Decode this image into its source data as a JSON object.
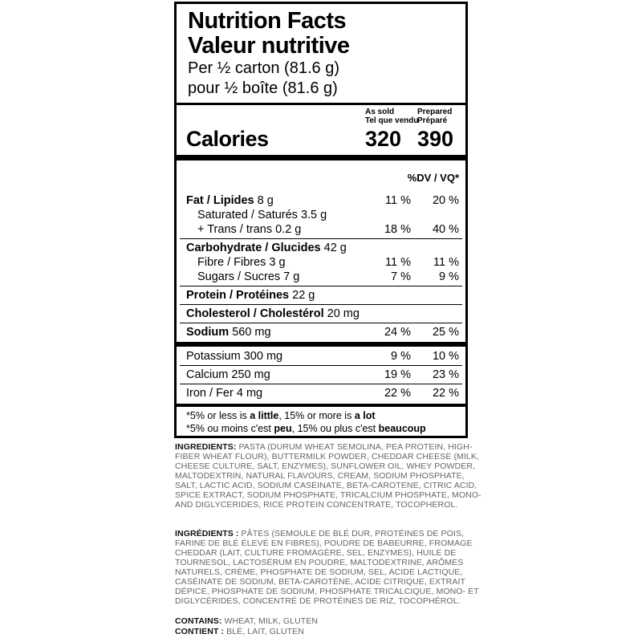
{
  "label": {
    "title_en": "Nutrition Facts",
    "title_fr": "Valeur nutritive",
    "serving_en": "Per ½ carton (81.6 g)",
    "serving_fr": "pour ½ boîte (81.6 g)",
    "col1_header": {
      "en": "As sold",
      "fr": "Tel que vendu"
    },
    "col2_header": {
      "en": "Prepared",
      "fr": "Préparé"
    },
    "calories": {
      "label": "Calories",
      "as_sold": "320",
      "prepared": "390"
    },
    "dv_header": "%DV / VQ*",
    "rows": [
      {
        "b": "Fat / Lipides",
        "r": " 8 g",
        "c1": "11 %",
        "c2": "20 %"
      },
      {
        "b": "",
        "r": "Saturated / Saturés 3.5 g",
        "c1": "",
        "c2": ""
      },
      {
        "b": "",
        "r": "+ Trans / trans 0.2 g",
        "c1": "18 %",
        "c2": "40 %"
      },
      {
        "b": "Carbohydrate / Glucides",
        "r": " 42 g",
        "c1": "",
        "c2": ""
      },
      {
        "b": "",
        "r": "Fibre / Fibres 3 g",
        "c1": "11 %",
        "c2": "11 %"
      },
      {
        "b": "",
        "r": "Sugars / Sucres 7 g",
        "c1": "7 %",
        "c2": "9 %"
      },
      {
        "b": "Protein / Protéines",
        "r": " 22 g",
        "c1": "",
        "c2": ""
      },
      {
        "b": "Cholesterol / Cholestérol",
        "r": " 20 mg",
        "c1": "",
        "c2": ""
      },
      {
        "b": "Sodium",
        "r": " 560 mg",
        "c1": "24 %",
        "c2": "25 %"
      },
      {
        "b": "",
        "r": "Potassium 300 mg",
        "c1": "9 %",
        "c2": "10 %"
      },
      {
        "b": "",
        "r": "Calcium 250 mg",
        "c1": "19 %",
        "c2": "23 %"
      },
      {
        "b": "",
        "r": "Iron / Fer 4 mg",
        "c1": "22 %",
        "c2": "22 %"
      }
    ],
    "footnote_en": {
      "p1": "*5% or less is ",
      "b1": "a little",
      "p2": ", 15% or more is ",
      "b2": "a lot"
    },
    "footnote_fr": {
      "p1": "*5% ou moins c'est ",
      "b1": "peu",
      "p2": ", 15% ou plus c'est ",
      "b2": "beaucoup"
    }
  },
  "ingredients_en": {
    "label": "INGREDIENTS:",
    "text": " PASTA (DURUM WHEAT SEMOLINA, PEA PROTEIN, HIGH-FIBER WHEAT FLOUR), BUTTERMILK POWDER, CHEDDAR CHEESE (MILK, CHEESE CULTURE, SALT, ENZYMES), SUNFLOWER OIL, WHEY POWDER, MALTODEXTRIN, NATURAL FLAVOURS, CREAM, SODIUM PHOSPHATE, SALT, LACTIC ACID, SODIUM CASEINATE, BETA-CAROTENE, CITRIC ACID, SPICE EXTRACT, SODIUM PHOSPHATE, TRICALCIUM PHOSPHATE, MONO- AND DIGLYCERIDES, RICE PROTEIN CONCENTRATE, TOCOPHEROL."
  },
  "ingredients_fr": {
    "label": "INGRÉDIENTS :",
    "text": " PÂTES (SEMOULE DE BLÉ DUR, PROTÉINES DE POIS, FARINE DE BLÉ ÉLEVÉ EN FIBRES), POUDRE DE BABEURRE, FROMAGE CHEDDAR (LAIT, CULTURE FROMAGÈRE, SEL, ENZYMES), HUILE DE TOURNESOL, LACTOSÉRUM EN POUDRE, MALTODEXTRINE, ARÔMES NATURELS, CRÈME, PHOSPHATE DE SODIUM, SEL, ACIDE LACTIQUE, CASÉINATE DE SODIUM, BETA-CAROTÈNE, ACIDE CITRIQUE, EXTRAIT DÉPICE, PHOSPHATE DE SODIUM, PHOSPHATE TRICALCIQUE, MONO- ET DIGLYCÉRIDES, CONCENTRÉ DE PROTÉINES DE RIZ, TOCOPHÉROL."
  },
  "contains_en": {
    "label": "CONTAINS:",
    "text": " WHEAT, MILK, GLUTEN"
  },
  "contains_fr": {
    "label": "CONTIENT :",
    "text": " BLÉ, LAIT, GLUTEN"
  }
}
